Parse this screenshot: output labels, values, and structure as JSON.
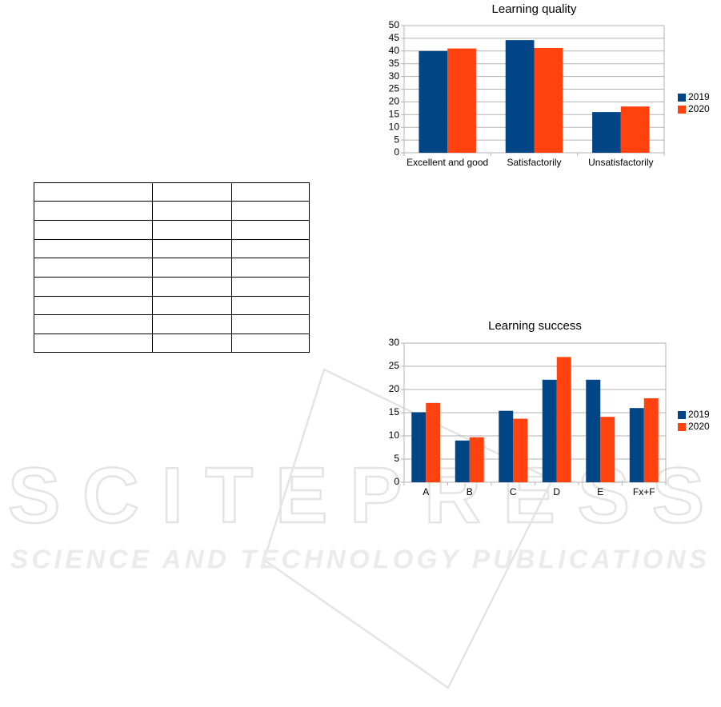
{
  "chart_data": [
    {
      "type": "bar",
      "title": "Learning quality",
      "categories": [
        "Excellent and good",
        "Satisfactorily",
        "Unsatisfactorily"
      ],
      "series": [
        {
          "name": "2019",
          "color": "#004586",
          "values": [
            40,
            44.3,
            16
          ]
        },
        {
          "name": "2020",
          "color": "#ff420e",
          "values": [
            41,
            41.2,
            18.2
          ]
        }
      ],
      "ylim": [
        0,
        50
      ],
      "yticks": [
        0,
        5,
        10,
        15,
        20,
        25,
        30,
        35,
        40,
        45,
        50
      ],
      "grid": true,
      "legend": "right"
    },
    {
      "type": "bar",
      "title": "Learning success",
      "categories": [
        "A",
        "B",
        "C",
        "D",
        "E",
        "Fx+F"
      ],
      "series": [
        {
          "name": "2019",
          "color": "#004586",
          "values": [
            15.1,
            9,
            15.4,
            22.1,
            22.1,
            16
          ]
        },
        {
          "name": "2020",
          "color": "#ff420e",
          "values": [
            17.1,
            9.7,
            13.7,
            27,
            14.1,
            18.1
          ]
        }
      ],
      "ylim": [
        0,
        30
      ],
      "yticks": [
        0,
        5,
        10,
        15,
        20,
        25,
        30
      ],
      "grid": true,
      "legend": "right"
    }
  ],
  "watermark": {
    "title": "SCITEPRESS",
    "subtitle": "SCIENCE AND TECHNOLOGY PUBLICATIONS"
  }
}
